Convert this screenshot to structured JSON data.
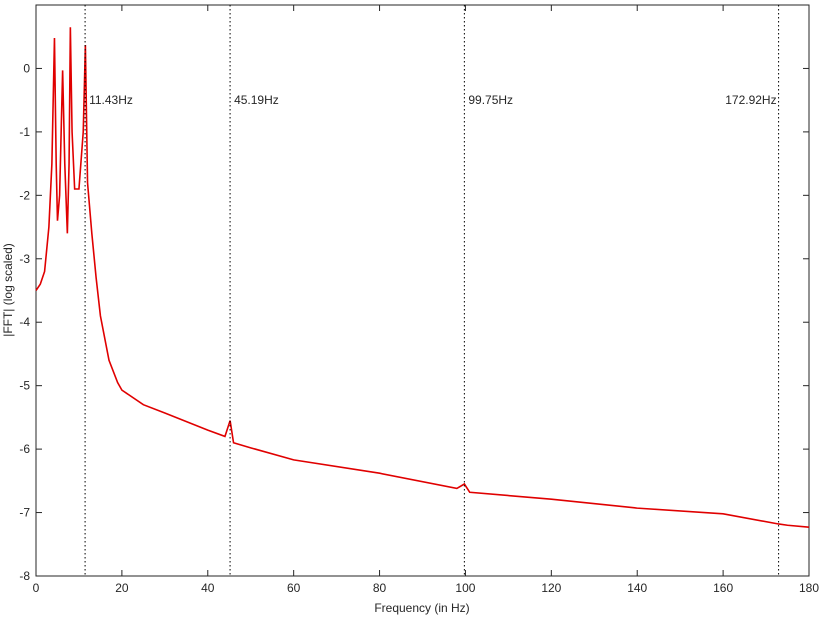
{
  "chart_data": {
    "type": "line",
    "x": [
      0,
      1,
      2,
      3,
      3.7,
      4.3,
      4.7,
      5.0,
      5.5,
      6.2,
      6.7,
      7.3,
      7.7,
      8.0,
      8.4,
      9.0,
      10.0,
      11.0,
      11.5,
      12.0,
      13,
      14,
      15,
      17,
      19,
      20,
      25,
      30,
      40,
      44,
      45.2,
      46,
      50,
      60,
      80,
      98,
      99.75,
      101,
      120,
      140,
      160,
      172.9,
      175,
      180
    ],
    "series": [
      {
        "color": "#e00000",
        "values": [
          -3.5,
          -3.4,
          -3.2,
          -2.5,
          -1.5,
          0.48,
          -1.5,
          -2.4,
          -2.0,
          -0.03,
          -1.5,
          -2.6,
          -1.5,
          0.65,
          -1.0,
          -1.9,
          -1.9,
          -1.0,
          0.37,
          -1.8,
          -2.6,
          -3.3,
          -3.9,
          -4.6,
          -4.95,
          -5.07,
          -5.3,
          -5.43,
          -5.7,
          -5.8,
          -5.55,
          -5.9,
          -5.98,
          -6.17,
          -6.38,
          -6.62,
          -6.55,
          -6.68,
          -6.79,
          -6.93,
          -7.02,
          -7.18,
          -7.2,
          -7.23
        ]
      }
    ],
    "xlabel": "Frequency (in Hz)",
    "ylabel": "|FFT| (log scaled)",
    "xlim": [
      0,
      180
    ],
    "xticks": [
      0,
      20,
      40,
      60,
      80,
      100,
      120,
      140,
      160,
      180
    ],
    "ylim": [
      -8,
      1
    ],
    "yticks": [
      -8,
      -7,
      -6,
      -5,
      -4,
      -3,
      -2,
      -1,
      0
    ],
    "annotations": [
      {
        "x": 11.43,
        "label": "11.43Hz"
      },
      {
        "x": 45.19,
        "label": "45.19Hz"
      },
      {
        "x": 99.75,
        "label": "99.75Hz"
      },
      {
        "x": 172.92,
        "label": "172.92Hz"
      }
    ]
  }
}
